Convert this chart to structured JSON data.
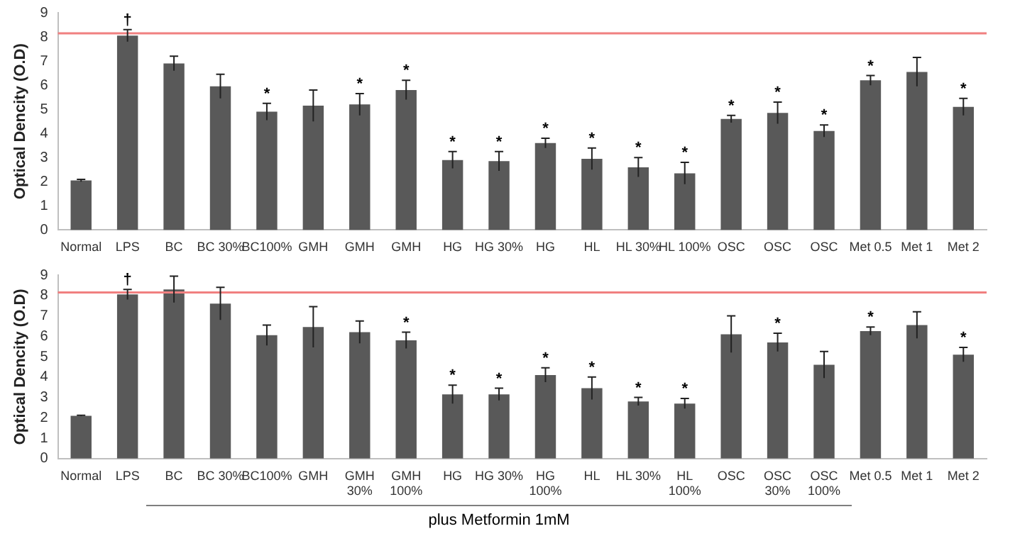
{
  "chart_data": [
    {
      "type": "bar",
      "ylabel": "Optical Dencity (O.D)",
      "color": "#595959",
      "categories": [
        "Normal",
        "LPS",
        "BC",
        "BC 30%",
        "BC100%",
        "GMH",
        "GMH",
        "GMH",
        "HG",
        "HG 30%",
        "HG",
        "HL",
        "HL 30%",
        "HL 100%",
        "OSC",
        "OSC",
        "OSC",
        "Met 0.5",
        "Met 1",
        "Met 2"
      ],
      "values": [
        2.05,
        8.05,
        6.9,
        5.95,
        4.9,
        5.15,
        5.2,
        5.8,
        2.9,
        2.85,
        3.6,
        2.95,
        2.6,
        2.35,
        4.6,
        4.85,
        4.1,
        6.2,
        6.55,
        5.1
      ],
      "errors": [
        0.05,
        0.25,
        0.3,
        0.5,
        0.35,
        0.65,
        0.45,
        0.4,
        0.35,
        0.4,
        0.2,
        0.45,
        0.4,
        0.45,
        0.15,
        0.45,
        0.25,
        0.2,
        0.6,
        0.35
      ],
      "value_labels": [
        null,
        "†",
        null,
        null,
        "*",
        null,
        "*",
        "*",
        "*",
        "*",
        "*",
        "*",
        "*",
        "*",
        "*",
        "*",
        "*",
        "*",
        null,
        "*"
      ],
      "ylim": [
        0,
        9
      ],
      "yticks": [
        0,
        1,
        2,
        3,
        4,
        5,
        6,
        7,
        8,
        9
      ],
      "ref_lines": [
        {
          "axis": "y",
          "value": 8.15,
          "color": "#f08080"
        }
      ]
    },
    {
      "type": "bar",
      "ylabel": "Optical Dencity (O.D)",
      "color": "#595959",
      "categories": [
        "Normal",
        "LPS",
        "BC",
        "BC 30%",
        "BC100%",
        "GMH",
        "GMH\n30%",
        "GMH\n100%",
        "HG",
        "HG 30%",
        "HG\n100%",
        "HL",
        "HL 30%",
        "HL\n100%",
        "OSC",
        "OSC\n30%",
        "OSC\n100%",
        "Met 0.5",
        "Met 1",
        "Met 2"
      ],
      "values": [
        2.1,
        8.05,
        8.3,
        7.6,
        6.05,
        6.45,
        6.2,
        5.8,
        3.15,
        3.15,
        4.1,
        3.45,
        2.8,
        2.7,
        6.1,
        5.7,
        4.6,
        6.25,
        6.55,
        5.1
      ],
      "errors": [
        0.02,
        0.25,
        0.65,
        0.8,
        0.5,
        1.0,
        0.55,
        0.4,
        0.45,
        0.3,
        0.35,
        0.55,
        0.2,
        0.25,
        0.9,
        0.45,
        0.65,
        0.2,
        0.65,
        0.35
      ],
      "value_labels": [
        null,
        "†",
        null,
        null,
        null,
        null,
        null,
        "*",
        "*",
        "*",
        "*",
        "*",
        "*",
        "*",
        null,
        "*",
        null,
        "*",
        null,
        "*"
      ],
      "ylim": [
        0,
        9
      ],
      "yticks": [
        0,
        1,
        2,
        3,
        4,
        5,
        6,
        7,
        8,
        9
      ],
      "ref_lines": [
        {
          "axis": "y",
          "value": 8.15,
          "color": "#f08080"
        }
      ],
      "annotations": [
        "plus Metformin 1mM"
      ]
    }
  ]
}
